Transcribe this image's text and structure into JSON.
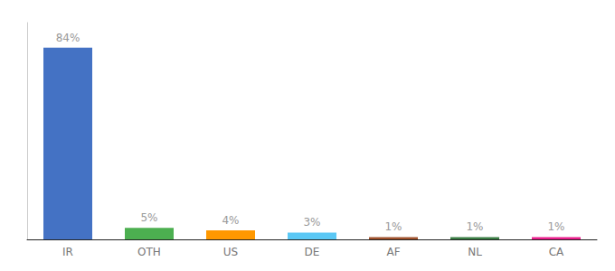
{
  "chart_data": {
    "type": "bar",
    "categories": [
      "IR",
      "OTH",
      "US",
      "DE",
      "AF",
      "NL",
      "CA"
    ],
    "values": [
      84,
      5,
      4,
      3,
      1,
      1,
      1
    ],
    "value_labels": [
      "84%",
      "5%",
      "4%",
      "3%",
      "1%",
      "1%",
      "1%"
    ],
    "colors": [
      "#4472C4",
      "#4CAF50",
      "#FF9800",
      "#5BC8F5",
      "#A0522D",
      "#3A7D44",
      "#E91E8C"
    ],
    "ylim": [
      0,
      95
    ],
    "data_labels": true,
    "tick_labels": "x",
    "grid": false
  }
}
